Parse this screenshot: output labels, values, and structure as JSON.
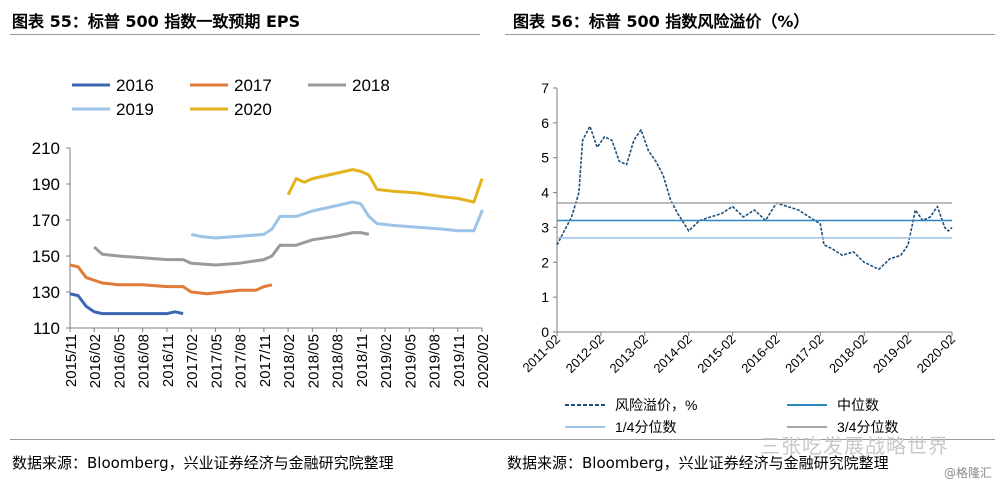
{
  "left": {
    "title": "图表 55：标普 500 指数一致预期 EPS",
    "source": "数据来源：Bloomberg，兴业证券经济与金融研究院整理"
  },
  "right": {
    "title": "图表 56：标普 500 指数风险溢价（%）",
    "source": "数据来源：Bloomberg，兴业证券经济与金融研究院整理"
  },
  "watermark": "三张吃发展战略世界",
  "credit": "@格隆汇",
  "chart_data": [
    {
      "type": "line",
      "title": "标普 500 指数一致预期 EPS",
      "ylim": [
        110,
        210
      ],
      "yticks": [
        110,
        130,
        150,
        170,
        190,
        210
      ],
      "x_tick_labels": [
        "2015/11",
        "2016/02",
        "2016/05",
        "2016/08",
        "2016/11",
        "2017/02",
        "2017/05",
        "2017/08",
        "2017/11",
        "2018/02",
        "2018/05",
        "2018/08",
        "2018/11",
        "2019/02",
        "2019/05",
        "2019/08",
        "2019/11",
        "2020/02"
      ],
      "legend_position": "top",
      "series": [
        {
          "name": "2016",
          "color": "#3a66b2",
          "points": [
            [
              "2015/11",
              129
            ],
            [
              "2015/12",
              128
            ],
            [
              "2016/01",
              122
            ],
            [
              "2016/02",
              119
            ],
            [
              "2016/03",
              118
            ],
            [
              "2016/05",
              118
            ],
            [
              "2016/07",
              118
            ],
            [
              "2016/09",
              118
            ],
            [
              "2016/11",
              118
            ],
            [
              "2016/12",
              119
            ],
            [
              "2017/01",
              118
            ]
          ]
        },
        {
          "name": "2017",
          "color": "#e07b39",
          "points": [
            [
              "2015/11",
              145
            ],
            [
              "2015/12",
              144
            ],
            [
              "2016/01",
              138
            ],
            [
              "2016/03",
              135
            ],
            [
              "2016/05",
              134
            ],
            [
              "2016/08",
              134
            ],
            [
              "2016/11",
              133
            ],
            [
              "2017/01",
              133
            ],
            [
              "2017/02",
              130
            ],
            [
              "2017/04",
              129
            ],
            [
              "2017/06",
              130
            ],
            [
              "2017/08",
              131
            ],
            [
              "2017/10",
              131
            ],
            [
              "2017/11",
              133
            ],
            [
              "2017/12",
              134
            ]
          ]
        },
        {
          "name": "2018",
          "color": "#9a9a9a",
          "points": [
            [
              "2016/02",
              155
            ],
            [
              "2016/03",
              151
            ],
            [
              "2016/05",
              150
            ],
            [
              "2016/08",
              149
            ],
            [
              "2016/11",
              148
            ],
            [
              "2017/01",
              148
            ],
            [
              "2017/02",
              146
            ],
            [
              "2017/05",
              145
            ],
            [
              "2017/08",
              146
            ],
            [
              "2017/11",
              148
            ],
            [
              "2017/12",
              150
            ],
            [
              "2018/01",
              156
            ],
            [
              "2018/03",
              156
            ],
            [
              "2018/05",
              159
            ],
            [
              "2018/08",
              161
            ],
            [
              "2018/10",
              163
            ],
            [
              "2018/11",
              163
            ],
            [
              "2018/12",
              162
            ]
          ]
        },
        {
          "name": "2019",
          "color": "#9dc3e6",
          "points": [
            [
              "2017/02",
              162
            ],
            [
              "2017/03",
              161
            ],
            [
              "2017/05",
              160
            ],
            [
              "2017/08",
              161
            ],
            [
              "2017/11",
              162
            ],
            [
              "2017/12",
              165
            ],
            [
              "2018/01",
              172
            ],
            [
              "2018/03",
              172
            ],
            [
              "2018/05",
              175
            ],
            [
              "2018/08",
              178
            ],
            [
              "2018/10",
              180
            ],
            [
              "2018/11",
              179
            ],
            [
              "2018/12",
              172
            ],
            [
              "2019/01",
              168
            ],
            [
              "2019/03",
              167
            ],
            [
              "2019/06",
              166
            ],
            [
              "2019/09",
              165
            ],
            [
              "2019/11",
              164
            ],
            [
              "2020/01",
              164
            ],
            [
              "2020/02",
              175
            ],
            [
              "2020/02",
              174
            ]
          ]
        },
        {
          "name": "2020",
          "color": "#e3b21e",
          "points": [
            [
              "2018/02",
              184
            ],
            [
              "2018/03",
              193
            ],
            [
              "2018/04",
              191
            ],
            [
              "2018/05",
              193
            ],
            [
              "2018/07",
              195
            ],
            [
              "2018/09",
              197
            ],
            [
              "2018/10",
              198
            ],
            [
              "2018/11",
              197
            ],
            [
              "2018/12",
              195
            ],
            [
              "2019/01",
              187
            ],
            [
              "2019/03",
              186
            ],
            [
              "2019/06",
              185
            ],
            [
              "2019/09",
              183
            ],
            [
              "2019/11",
              182
            ],
            [
              "2020/01",
              180
            ],
            [
              "2020/02",
              193
            ]
          ]
        }
      ]
    },
    {
      "type": "line",
      "title": "标普 500 指数风险溢价（%）",
      "ylim": [
        0,
        7
      ],
      "yticks": [
        0,
        1,
        2,
        3,
        4,
        5,
        6,
        7
      ],
      "x_tick_labels": [
        "2011-02",
        "2012-02",
        "2013-02",
        "2014-02",
        "2015-02",
        "2016-02",
        "2017-02",
        "2018-02",
        "2019-02",
        "2020-02"
      ],
      "legend_position": "bottom",
      "series": [
        {
          "name": "风险溢价，%",
          "color": "#1f4e79",
          "dashed": true,
          "points": [
            [
              "2011-02",
              2.5
            ],
            [
              "2011-04",
              2.9
            ],
            [
              "2011-06",
              3.3
            ],
            [
              "2011-08",
              4.0
            ],
            [
              "2011-09",
              5.5
            ],
            [
              "2011-11",
              5.9
            ],
            [
              "2012-01",
              5.3
            ],
            [
              "2012-03",
              5.6
            ],
            [
              "2012-05",
              5.5
            ],
            [
              "2012-07",
              4.9
            ],
            [
              "2012-09",
              4.8
            ],
            [
              "2012-11",
              5.5
            ],
            [
              "2013-01",
              5.8
            ],
            [
              "2013-03",
              5.2
            ],
            [
              "2013-05",
              4.9
            ],
            [
              "2013-07",
              4.5
            ],
            [
              "2013-09",
              3.8
            ],
            [
              "2013-11",
              3.4
            ],
            [
              "2014-02",
              2.9
            ],
            [
              "2014-05",
              3.2
            ],
            [
              "2014-08",
              3.3
            ],
            [
              "2014-11",
              3.4
            ],
            [
              "2015-02",
              3.6
            ],
            [
              "2015-05",
              3.3
            ],
            [
              "2015-08",
              3.5
            ],
            [
              "2015-11",
              3.2
            ],
            [
              "2016-02",
              3.7
            ],
            [
              "2016-05",
              3.6
            ],
            [
              "2016-08",
              3.5
            ],
            [
              "2016-11",
              3.3
            ],
            [
              "2017-02",
              3.1
            ],
            [
              "2017-03",
              2.5
            ],
            [
              "2017-05",
              2.4
            ],
            [
              "2017-08",
              2.2
            ],
            [
              "2017-11",
              2.3
            ],
            [
              "2018-02",
              2.0
            ],
            [
              "2018-04",
              1.9
            ],
            [
              "2018-06",
              1.8
            ],
            [
              "2018-09",
              2.1
            ],
            [
              "2018-12",
              2.2
            ],
            [
              "2019-02",
              2.5
            ],
            [
              "2019-04",
              3.5
            ],
            [
              "2019-06",
              3.2
            ],
            [
              "2019-08",
              3.3
            ],
            [
              "2019-10",
              3.6
            ],
            [
              "2019-12",
              3.0
            ],
            [
              "2020-01",
              2.9
            ],
            [
              "2020-02",
              3.0
            ]
          ]
        },
        {
          "name": "中位数",
          "color": "#2e86c1",
          "value": 3.2
        },
        {
          "name": "1/4分位数",
          "color": "#9dc3e6",
          "value": 2.7
        },
        {
          "name": "3/4分位数",
          "color": "#a6a6a6",
          "value": 3.7
        }
      ]
    }
  ]
}
